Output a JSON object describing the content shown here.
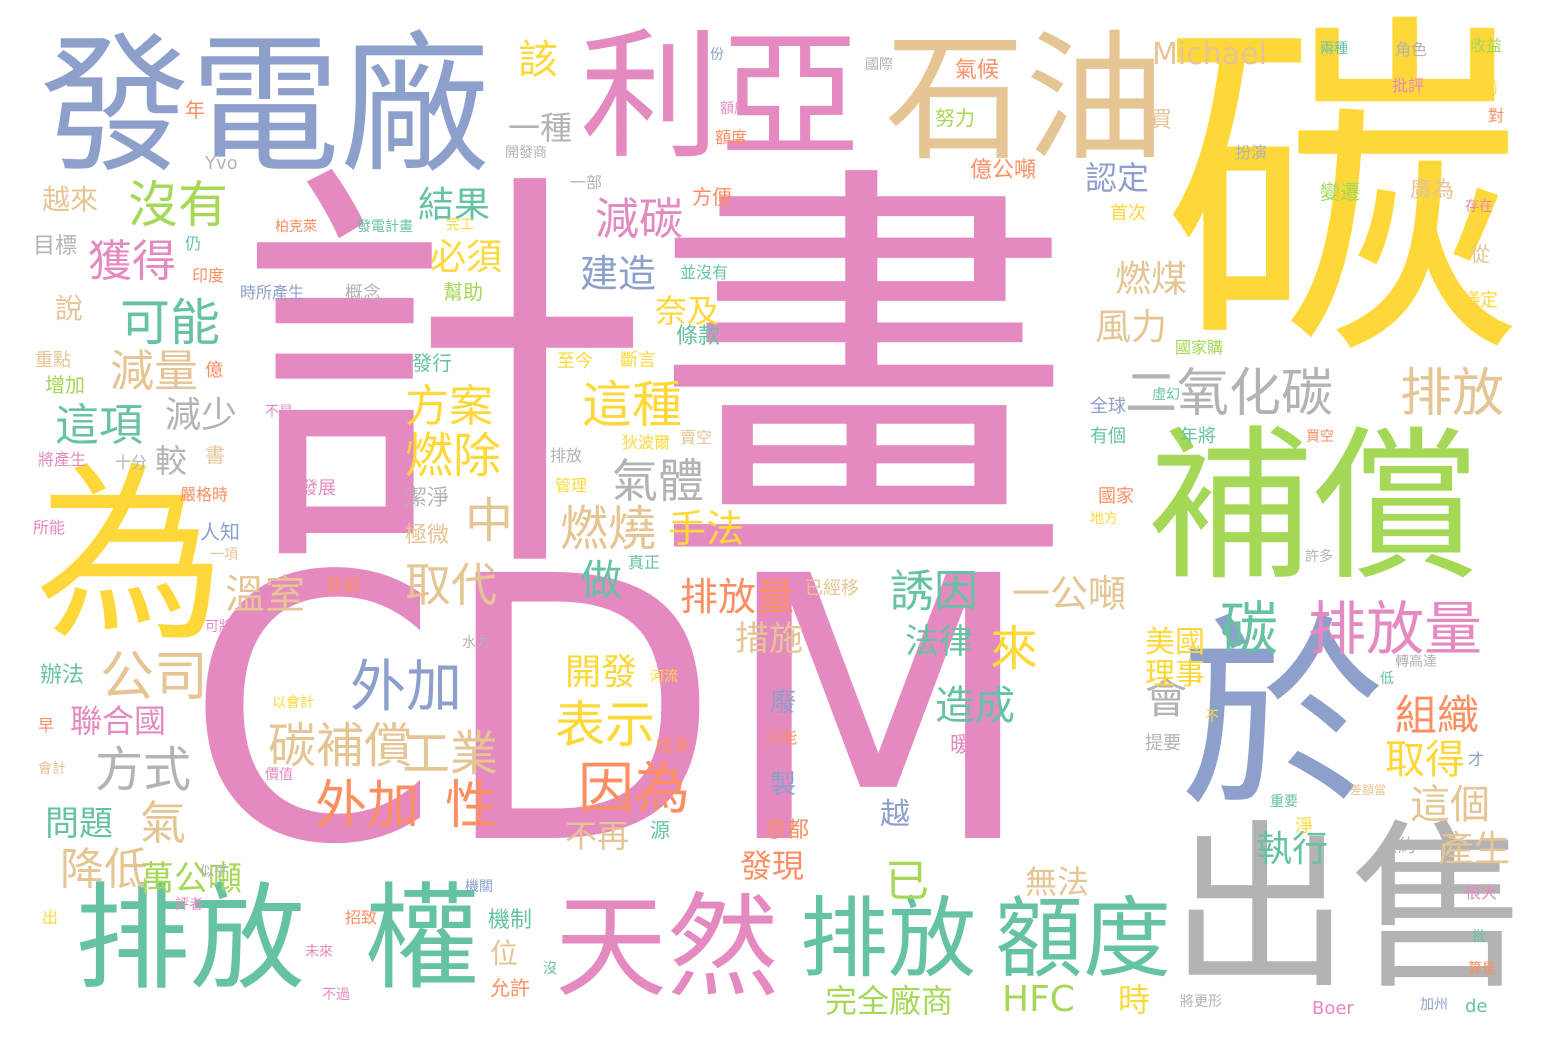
{
  "colors": {
    "pink": "#e58ac1",
    "yellow": "#fdd838",
    "green": "#a5d857",
    "teal": "#66c2a5",
    "blue": "#8ca0cb",
    "gray": "#b3b3b3",
    "tan": "#e5c593",
    "orange": "#fc8e62"
  },
  "words": [
    {
      "text": "計畫",
      "color": "pink"
    },
    {
      "text": "CDM",
      "color": "pink"
    },
    {
      "text": "碳",
      "color": "yellow"
    },
    {
      "text": "發電廠",
      "color": "blue"
    },
    {
      "text": "利亞",
      "color": "pink"
    },
    {
      "text": "石油",
      "color": "tan"
    },
    {
      "text": "為",
      "color": "yellow"
    },
    {
      "text": "補償",
      "color": "green"
    },
    {
      "text": "於",
      "color": "blue"
    },
    {
      "text": "出售",
      "color": "gray"
    },
    {
      "text": "排放",
      "color": "teal"
    },
    {
      "text": "權",
      "color": "teal"
    },
    {
      "text": "天然",
      "color": "pink"
    },
    {
      "text": "排放",
      "color": "teal"
    },
    {
      "text": "額度",
      "color": "teal"
    },
    {
      "text": "二氧化碳",
      "color": "gray"
    },
    {
      "text": "排放",
      "color": "tan"
    },
    {
      "text": "碳",
      "color": "teal"
    },
    {
      "text": "排放量",
      "color": "pink"
    },
    {
      "text": "沒有",
      "color": "green"
    },
    {
      "text": "獲得",
      "color": "pink"
    },
    {
      "text": "可能",
      "color": "teal"
    },
    {
      "text": "減量",
      "color": "tan"
    },
    {
      "text": "這項",
      "color": "teal"
    },
    {
      "text": "減少",
      "color": "gray"
    },
    {
      "text": "公司",
      "color": "tan"
    },
    {
      "text": "方式",
      "color": "gray"
    },
    {
      "text": "聯合國",
      "color": "pink"
    },
    {
      "text": "氣",
      "color": "tan"
    },
    {
      "text": "降低",
      "color": "tan"
    },
    {
      "text": "問題",
      "color": "teal"
    },
    {
      "text": "萬公噸",
      "color": "green"
    },
    {
      "text": "溫室",
      "color": "tan"
    },
    {
      "text": "外加",
      "color": "blue"
    },
    {
      "text": "碳補償",
      "color": "tan"
    },
    {
      "text": "工業",
      "color": "tan"
    },
    {
      "text": "外加",
      "color": "orange"
    },
    {
      "text": "性",
      "color": "orange"
    },
    {
      "text": "表示",
      "color": "yellow"
    },
    {
      "text": "因為",
      "color": "orange"
    },
    {
      "text": "開發",
      "color": "yellow"
    },
    {
      "text": "燃燒",
      "color": "tan"
    },
    {
      "text": "做",
      "color": "teal"
    },
    {
      "text": "取代",
      "color": "tan"
    },
    {
      "text": "手法",
      "color": "yellow"
    },
    {
      "text": "燃除",
      "color": "yellow"
    },
    {
      "text": "方案",
      "color": "yellow"
    },
    {
      "text": "中",
      "color": "tan"
    },
    {
      "text": "氣體",
      "color": "gray"
    },
    {
      "text": "這種",
      "color": "yellow"
    },
    {
      "text": "減碳",
      "color": "pink"
    },
    {
      "text": "建造",
      "color": "blue"
    },
    {
      "text": "奈及",
      "color": "yellow"
    },
    {
      "text": "結果",
      "color": "teal"
    },
    {
      "text": "必須",
      "color": "yellow"
    },
    {
      "text": "排放量",
      "color": "orange"
    },
    {
      "text": "誘因",
      "color": "teal"
    },
    {
      "text": "來",
      "color": "yellow"
    },
    {
      "text": "一公噸",
      "color": "tan"
    },
    {
      "text": "措施",
      "color": "tan"
    },
    {
      "text": "法律",
      "color": "teal"
    },
    {
      "text": "造成",
      "color": "teal"
    },
    {
      "text": "已",
      "color": "green"
    },
    {
      "text": "完全廠商",
      "color": "green"
    },
    {
      "text": "HFC",
      "color": "green"
    },
    {
      "text": "時",
      "color": "yellow"
    },
    {
      "text": "無法",
      "color": "tan"
    },
    {
      "text": "執行",
      "color": "teal"
    },
    {
      "text": "發現",
      "color": "orange"
    },
    {
      "text": "會",
      "color": "gray"
    },
    {
      "text": "組織",
      "color": "orange"
    },
    {
      "text": "取得",
      "color": "yellow"
    },
    {
      "text": "這個",
      "color": "tan"
    },
    {
      "text": "產生",
      "color": "tan"
    },
    {
      "text": "美國",
      "color": "yellow"
    },
    {
      "text": "理事",
      "color": "yellow"
    },
    {
      "text": "燃煤",
      "color": "tan"
    },
    {
      "text": "風力",
      "color": "tan"
    },
    {
      "text": "認定",
      "color": "blue"
    },
    {
      "text": "該",
      "color": "yellow"
    },
    {
      "text": "一種",
      "color": "gray"
    },
    {
      "text": "Michael",
      "color": "tan"
    },
    {
      "text": "越來",
      "color": "tan"
    },
    {
      "text": "說",
      "color": "tan"
    },
    {
      "text": "目標",
      "color": "gray"
    },
    {
      "text": "年",
      "color": "orange"
    },
    {
      "text": "Yvo",
      "color": "gray"
    },
    {
      "text": "氣候",
      "color": "orange"
    },
    {
      "text": "努力",
      "color": "green"
    },
    {
      "text": "億公噸",
      "color": "orange"
    },
    {
      "text": "額度",
      "color": "orange"
    },
    {
      "text": "開發商",
      "color": "gray"
    },
    {
      "text": "一部",
      "color": "gray"
    },
    {
      "text": "方便",
      "color": "orange"
    },
    {
      "text": "並沒有",
      "color": "teal"
    },
    {
      "text": "條款",
      "color": "teal"
    },
    {
      "text": "至今",
      "color": "yellow"
    },
    {
      "text": "斷言",
      "color": "yellow"
    },
    {
      "text": "發行",
      "color": "teal"
    },
    {
      "text": "幫助",
      "color": "green"
    },
    {
      "text": "概念",
      "color": "gray"
    },
    {
      "text": "時所產生",
      "color": "blue"
    },
    {
      "text": "印度",
      "color": "orange"
    },
    {
      "text": "仍",
      "color": "teal"
    },
    {
      "text": "柏克萊",
      "color": "orange"
    },
    {
      "text": "發電計畫",
      "color": "teal"
    },
    {
      "text": "完工",
      "color": "yellow"
    },
    {
      "text": "重點",
      "color": "tan"
    },
    {
      "text": "增加",
      "color": "green"
    },
    {
      "text": "億",
      "color": "orange"
    },
    {
      "text": "將產生",
      "color": "pink"
    },
    {
      "text": "十分",
      "color": "gray"
    },
    {
      "text": "較",
      "color": "gray"
    },
    {
      "text": "書",
      "color": "tan"
    },
    {
      "text": "不是",
      "color": "pink"
    },
    {
      "text": "嚴格時",
      "color": "orange"
    },
    {
      "text": "所能",
      "color": "pink"
    },
    {
      "text": "人知",
      "color": "blue"
    },
    {
      "text": "一項",
      "color": "tan"
    },
    {
      "text": "可將",
      "color": "pink"
    },
    {
      "text": "辦法",
      "color": "teal"
    },
    {
      "text": "早",
      "color": "orange"
    },
    {
      "text": "會計",
      "color": "tan"
    },
    {
      "text": "出",
      "color": "yellow"
    },
    {
      "text": "似乎",
      "color": "gray"
    },
    {
      "text": "評者",
      "color": "pink"
    },
    {
      "text": "發展",
      "color": "pink"
    },
    {
      "text": "照樣",
      "color": "pink"
    },
    {
      "text": "潔淨",
      "color": "gray"
    },
    {
      "text": "極微",
      "color": "tan"
    },
    {
      "text": "貧窮",
      "color": "orange"
    },
    {
      "text": "真正",
      "color": "teal"
    },
    {
      "text": "水力",
      "color": "gray"
    },
    {
      "text": "以會計",
      "color": "yellow"
    },
    {
      "text": "價值",
      "color": "pink"
    },
    {
      "text": "權是",
      "color": "pink"
    },
    {
      "text": "河流",
      "color": "yellow"
    },
    {
      "text": "成本",
      "color": "orange"
    },
    {
      "text": "不再",
      "color": "tan"
    },
    {
      "text": "源",
      "color": "teal"
    },
    {
      "text": "京都",
      "color": "orange"
    },
    {
      "text": "製",
      "color": "blue"
    },
    {
      "text": "廢",
      "color": "blue"
    },
    {
      "text": "只能",
      "color": "orange"
    },
    {
      "text": "綱要",
      "color": "pink"
    },
    {
      "text": "已經移",
      "color": "tan"
    },
    {
      "text": "暖化",
      "color": "pink"
    },
    {
      "text": "越",
      "color": "blue"
    },
    {
      "text": "機關",
      "color": "blue"
    },
    {
      "text": "招致",
      "color": "orange"
    },
    {
      "text": "機制",
      "color": "teal"
    },
    {
      "text": "未來",
      "color": "pink"
    },
    {
      "text": "位",
      "color": "tan"
    },
    {
      "text": "允許",
      "color": "orange"
    },
    {
      "text": "沒",
      "color": "teal"
    },
    {
      "text": "不過",
      "color": "pink"
    },
    {
      "text": "份",
      "color": "blue"
    },
    {
      "text": "國際",
      "color": "gray"
    },
    {
      "text": "額度",
      "color": "pink"
    },
    {
      "text": "買",
      "color": "tan"
    },
    {
      "text": "扮演",
      "color": "gray"
    },
    {
      "text": "變遷",
      "color": "green"
    },
    {
      "text": "首次",
      "color": "yellow"
    },
    {
      "text": "廣為",
      "color": "tan"
    },
    {
      "text": "國家購",
      "color": "green"
    },
    {
      "text": "全球",
      "color": "blue"
    },
    {
      "text": "虛幻",
      "color": "teal"
    },
    {
      "text": "有個",
      "color": "teal"
    },
    {
      "text": "年將",
      "color": "teal"
    },
    {
      "text": "買空",
      "color": "orange"
    },
    {
      "text": "賣空",
      "color": "tan"
    },
    {
      "text": "排放",
      "color": "gray"
    },
    {
      "text": "管理",
      "color": "yellow"
    },
    {
      "text": "狄波爾",
      "color": "yellow"
    },
    {
      "text": "國家",
      "color": "orange"
    },
    {
      "text": "地方",
      "color": "yellow"
    },
    {
      "text": "許多",
      "color": "gray"
    },
    {
      "text": "不",
      "color": "yellow"
    },
    {
      "text": "提要",
      "color": "gray"
    },
    {
      "text": "才",
      "color": "blue"
    },
    {
      "text": "重要",
      "color": "teal"
    },
    {
      "text": "淨",
      "color": "yellow"
    },
    {
      "text": "差額當",
      "color": "tan"
    },
    {
      "text": "公約",
      "color": "gray"
    },
    {
      "text": "低",
      "color": "teal"
    },
    {
      "text": "轉高達",
      "color": "gray"
    },
    {
      "text": "很大",
      "color": "pink"
    },
    {
      "text": "批",
      "color": "teal"
    },
    {
      "text": "算是",
      "color": "orange"
    },
    {
      "text": "加州",
      "color": "blue"
    },
    {
      "text": "de",
      "color": "teal"
    },
    {
      "text": "Boer",
      "color": "pink"
    },
    {
      "text": "將更形",
      "color": "gray"
    },
    {
      "text": "兩種",
      "color": "teal"
    },
    {
      "text": "角色",
      "color": "gray"
    },
    {
      "text": "收益",
      "color": "green"
    },
    {
      "text": "批評",
      "color": "pink"
    },
    {
      "text": "之前",
      "color": "yellow"
    },
    {
      "text": "對",
      "color": "orange"
    },
    {
      "text": "存在",
      "color": "pink"
    },
    {
      "text": "從",
      "color": "tan"
    },
    {
      "text": "議定",
      "color": "yellow"
    }
  ]
}
